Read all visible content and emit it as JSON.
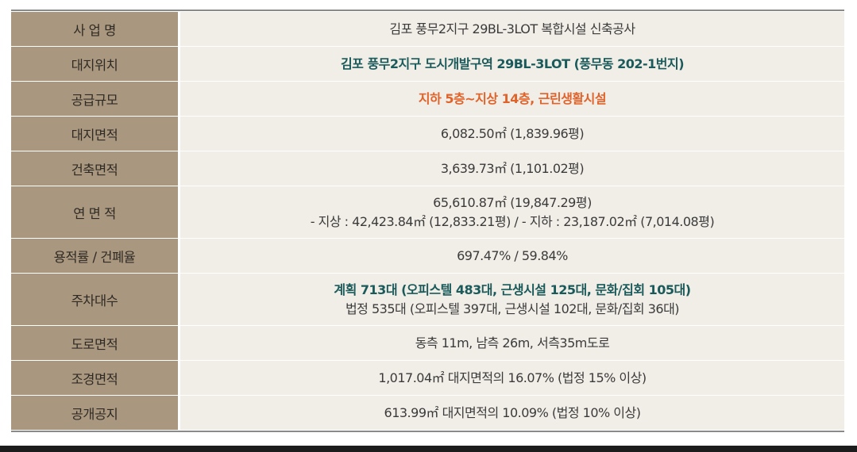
{
  "rows": [
    {
      "label": "사 업 명",
      "lines": [
        "김포 풍무2지구 29BL-3LOT 복합시설 신축공사"
      ],
      "style": "normal"
    },
    {
      "label": "대지위치",
      "lines": [
        "김포 풍무2지구 도시개발구역 29BL-3LOT (풍무동 202-1번지)"
      ],
      "style": "teal"
    },
    {
      "label": "공급규모",
      "lines": [
        "지하 5층~지상 14층, 근린생활시설"
      ],
      "style": "orange"
    },
    {
      "label": "대지면적",
      "lines": [
        "6,082.50㎡ (1,839.96평)"
      ],
      "style": "normal"
    },
    {
      "label": "건축면적",
      "lines": [
        "3,639.73㎡ (1,101.02평)"
      ],
      "style": "normal"
    },
    {
      "label": "연 면 적",
      "lines": [
        "65,610.87㎡ (19,847.29평)",
        "- 지상 : 42,423.84㎡ (12,833.21평)  / - 지하 : 23,187.02㎡ (7,014.08평)"
      ],
      "style": "normal"
    },
    {
      "label": "용적률 / 건폐율",
      "lines": [
        "697.47% / 59.84%"
      ],
      "style": "normal"
    },
    {
      "label": "주차대수",
      "lines": [
        "계획 713대 (오피스텔 483대, 근생시설 125대, 문화/집회 105대)",
        "법정 535대 (오피스텔 397대, 근생시설 102대, 문화/집회 36대)"
      ],
      "style": "mixed"
    },
    {
      "label": "도로면적",
      "lines": [
        "동측 11m, 남측 26m, 서측35m도로"
      ],
      "style": "normal"
    },
    {
      "label": "조경면적",
      "lines": [
        "1,017.04㎡ 대지면적의 16.07% (법정 15% 이상)"
      ],
      "style": "normal"
    },
    {
      "label": "공개공지",
      "lines": [
        "613.99㎡ 대지면적의 10.09% (법정 10% 이상)"
      ],
      "style": "normal"
    }
  ],
  "colors": {
    "label_bg": "#a9987f",
    "value_bg": "#f1ede7",
    "teal_text": "#1a5a5a",
    "orange_text": "#e0632a"
  }
}
